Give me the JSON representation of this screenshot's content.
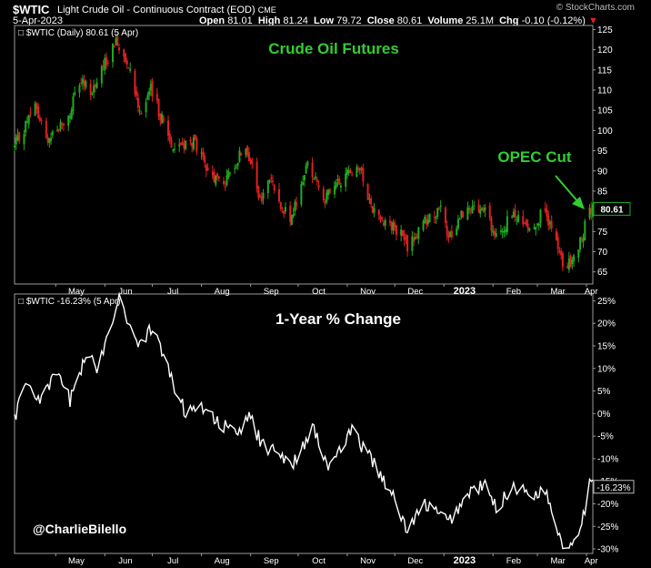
{
  "header": {
    "symbol": "$WTIC",
    "description": "Light Crude Oil - Continuous Contract (EOD)",
    "exchange": "CME",
    "date": "5-Apr-2023",
    "open_label": "Open",
    "open": "81.01",
    "high_label": "High",
    "high": "81.24",
    "low_label": "Low",
    "low": "79.72",
    "close_label": "Close",
    "close": "80.61",
    "volume_label": "Volume",
    "volume": "25.1M",
    "chg_label": "Chg",
    "chg": "-0.10 (-0.12%)",
    "watermark": "© StockCharts.com"
  },
  "colors": {
    "up": "#22aa22",
    "down": "#e02020",
    "accent_text": "#33cc33",
    "line": "#ffffff"
  },
  "chart_data": [
    {
      "type": "candlestick",
      "legend": "$WTIC (Daily) 80.61 (5 Apr)",
      "title": "Crude Oil Futures",
      "annotation": "OPEC Cut",
      "last_value_label": "80.61",
      "x_tick_labels": [
        "May",
        "Jun",
        "Jul",
        "Aug",
        "Sep",
        "Oct",
        "Nov",
        "Dec",
        "2023",
        "Feb",
        "Mar",
        "Apr"
      ],
      "y_tick_labels": [
        "65",
        "70",
        "75",
        "80",
        "85",
        "90",
        "95",
        "100",
        "105",
        "110",
        "115",
        "120",
        "125"
      ],
      "ylim": [
        62,
        126
      ],
      "x_range": [
        "2022-04-05",
        "2023-04-05"
      ],
      "close_anchors": [
        {
          "x": "2022-04-05",
          "y": 96
        },
        {
          "x": "2022-04-18",
          "y": 106
        },
        {
          "x": "2022-04-25",
          "y": 98
        },
        {
          "x": "2022-05-09",
          "y": 103
        },
        {
          "x": "2022-05-16",
          "y": 112
        },
        {
          "x": "2022-05-24",
          "y": 110
        },
        {
          "x": "2022-06-08",
          "y": 122
        },
        {
          "x": "2022-06-16",
          "y": 117
        },
        {
          "x": "2022-06-23",
          "y": 105
        },
        {
          "x": "2022-06-30",
          "y": 110
        },
        {
          "x": "2022-07-14",
          "y": 96
        },
        {
          "x": "2022-07-28",
          "y": 97
        },
        {
          "x": "2022-08-05",
          "y": 89
        },
        {
          "x": "2022-08-16",
          "y": 87
        },
        {
          "x": "2022-08-29",
          "y": 97
        },
        {
          "x": "2022-09-07",
          "y": 82
        },
        {
          "x": "2022-09-13",
          "y": 88
        },
        {
          "x": "2022-09-26",
          "y": 77
        },
        {
          "x": "2022-10-07",
          "y": 92
        },
        {
          "x": "2022-10-18",
          "y": 83
        },
        {
          "x": "2022-11-07",
          "y": 92
        },
        {
          "x": "2022-11-18",
          "y": 80
        },
        {
          "x": "2022-12-06",
          "y": 74
        },
        {
          "x": "2022-12-09",
          "y": 71
        },
        {
          "x": "2022-12-21",
          "y": 78
        },
        {
          "x": "2022-12-30",
          "y": 80
        },
        {
          "x": "2023-01-04",
          "y": 73
        },
        {
          "x": "2023-01-13",
          "y": 80
        },
        {
          "x": "2023-01-27",
          "y": 80
        },
        {
          "x": "2023-02-03",
          "y": 73
        },
        {
          "x": "2023-02-13",
          "y": 79
        },
        {
          "x": "2023-02-24",
          "y": 76
        },
        {
          "x": "2023-03-06",
          "y": 80
        },
        {
          "x": "2023-03-17",
          "y": 67
        },
        {
          "x": "2023-03-20",
          "y": 66
        },
        {
          "x": "2023-03-29",
          "y": 73
        },
        {
          "x": "2023-04-03",
          "y": 81
        },
        {
          "x": "2023-04-05",
          "y": 80.61
        }
      ]
    },
    {
      "type": "line",
      "legend": "$WTIC -16.23% (5 Apr)",
      "title": "1-Year % Change",
      "last_value_label": "-16.23%",
      "y_tick_labels": [
        "-30%",
        "-25%",
        "-20%",
        "-15%",
        "-10%",
        "-5%",
        "0%",
        "5%",
        "10%",
        "15%",
        "20%",
        "25%"
      ],
      "ylim": [
        -31,
        26.5
      ],
      "y_unit": "%",
      "series": [
        {
          "name": "$WTIC",
          "anchors": [
            {
              "x": "2022-04-05",
              "y": -1
            },
            {
              "x": "2022-04-12",
              "y": 7
            },
            {
              "x": "2022-04-22",
              "y": 3
            },
            {
              "x": "2022-05-02",
              "y": 9
            },
            {
              "x": "2022-05-10",
              "y": 3
            },
            {
              "x": "2022-05-20",
              "y": 13
            },
            {
              "x": "2022-05-27",
              "y": 10
            },
            {
              "x": "2022-06-10",
              "y": 26
            },
            {
              "x": "2022-06-22",
              "y": 15
            },
            {
              "x": "2022-07-01",
              "y": 19
            },
            {
              "x": "2022-07-14",
              "y": 7
            },
            {
              "x": "2022-07-22",
              "y": 0
            },
            {
              "x": "2022-08-01",
              "y": 2
            },
            {
              "x": "2022-08-12",
              "y": -2
            },
            {
              "x": "2022-08-24",
              "y": -5
            },
            {
              "x": "2022-08-31",
              "y": 0
            },
            {
              "x": "2022-09-08",
              "y": -7
            },
            {
              "x": "2022-09-20",
              "y": -9
            },
            {
              "x": "2022-09-28",
              "y": -11
            },
            {
              "x": "2022-10-10",
              "y": -3
            },
            {
              "x": "2022-10-20",
              "y": -12
            },
            {
              "x": "2022-11-04",
              "y": -4
            },
            {
              "x": "2022-11-18",
              "y": -11
            },
            {
              "x": "2022-11-28",
              "y": -17
            },
            {
              "x": "2022-12-09",
              "y": -26
            },
            {
              "x": "2022-12-20",
              "y": -20
            },
            {
              "x": "2023-01-04",
              "y": -24
            },
            {
              "x": "2023-01-18",
              "y": -17
            },
            {
              "x": "2023-01-27",
              "y": -16
            },
            {
              "x": "2023-02-03",
              "y": -21
            },
            {
              "x": "2023-02-14",
              "y": -16
            },
            {
              "x": "2023-02-24",
              "y": -18
            },
            {
              "x": "2023-03-06",
              "y": -17
            },
            {
              "x": "2023-03-17",
              "y": -29
            },
            {
              "x": "2023-03-20",
              "y": -30
            },
            {
              "x": "2023-03-29",
              "y": -24
            },
            {
              "x": "2023-04-03",
              "y": -16
            },
            {
              "x": "2023-04-05",
              "y": -16.23
            }
          ]
        }
      ]
    }
  ],
  "signature": "@CharlieBilello"
}
